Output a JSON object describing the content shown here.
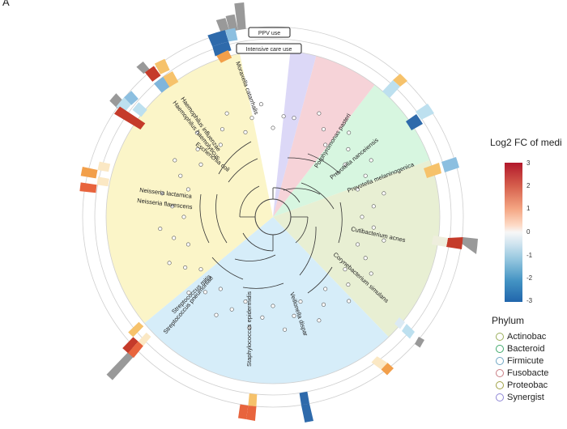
{
  "panel_label": "A",
  "track_labels": {
    "outer": "PPV use",
    "inner": "Intensive care use"
  },
  "legend": {
    "colorbar_title": "Log2 FC of medi",
    "ticks": [
      "3",
      "2",
      "1",
      "0",
      "-1",
      "-2",
      "-3"
    ],
    "phylum_title": "Phylum",
    "phyla": [
      {
        "label": "Actinobac",
        "color": "#9aae5a"
      },
      {
        "label": "Bacteroid",
        "color": "#3fa96b"
      },
      {
        "label": "Firmicute",
        "color": "#6fa7c4"
      },
      {
        "label": "Fusobacte",
        "color": "#c97d84"
      },
      {
        "label": "Proteobac",
        "color": "#a0a245"
      },
      {
        "label": "Synergist",
        "color": "#8e86d6"
      }
    ]
  },
  "species_labels": [
    "Porphyromonas pasteri",
    "Prevotella nanceiensis",
    "Prevotella melaninogenica",
    "Cutibacterium acnes",
    "Corynebacterium simulans",
    "Veillonella dispar",
    "Staphylococcus epidermidis",
    "Streptococcus mitis",
    "Streptococcus pneumoniae",
    "Neisseria lactamica",
    "Neisseria flavescens",
    "Escherichia coli",
    "Haemophilus haemolyticus",
    "Haemophilus influenzae",
    "Moraxella catarrhalis"
  ]
}
